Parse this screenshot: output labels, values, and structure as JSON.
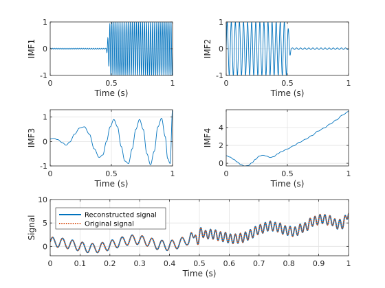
{
  "chart_data": [
    {
      "type": "line",
      "ylabel": "IMF1",
      "xlabel": "Time (s)",
      "xlim": [
        0,
        1
      ],
      "ylim": [
        -1,
        1
      ],
      "xticks": [
        0,
        0.5,
        1
      ],
      "xtick_labels": [
        "0",
        "0.5",
        "1"
      ],
      "yticks": [
        -1,
        0,
        1
      ],
      "ytick_labels": [
        "-1",
        "0",
        "1"
      ],
      "grid": true,
      "series": [
        {
          "color": "#0072BD",
          "description": "near zero until ~0.47 s, then oscillation of amplitude ~1 at ~60 Hz to 1 s",
          "segments": [
            {
              "x0": 0.0,
              "x1": 0.46,
              "amplitude": 0.02,
              "frequency_hz": 60
            },
            {
              "x0": 0.46,
              "x1": 0.49,
              "amplitude_start": 0.05,
              "amplitude_end": 1.0,
              "frequency_hz": 60
            },
            {
              "x0": 0.49,
              "x1": 1.0,
              "amplitude": 1.0,
              "frequency_hz": 60
            }
          ]
        }
      ]
    },
    {
      "type": "line",
      "ylabel": "IMF2",
      "xlabel": "Time (s)",
      "xlim": [
        0,
        1
      ],
      "ylim": [
        -1,
        1
      ],
      "xticks": [
        0,
        0.5,
        1
      ],
      "xtick_labels": [
        "0",
        "0.5",
        "1"
      ],
      "yticks": [
        -1,
        0,
        1
      ],
      "ytick_labels": [
        "-1",
        "0",
        "1"
      ],
      "grid": true,
      "series": [
        {
          "color": "#0072BD",
          "description": "oscillation of amplitude ~1 at ~30 Hz from 0 to ~0.5 s, then near zero",
          "segments": [
            {
              "x0": 0.0,
              "x1": 0.5,
              "amplitude": 1.0,
              "frequency_hz": 30
            },
            {
              "x0": 0.5,
              "x1": 0.53,
              "amplitude_start": 1.0,
              "amplitude_end": 0.03,
              "frequency_hz": 30
            },
            {
              "x0": 0.53,
              "x1": 1.0,
              "amplitude": 0.03,
              "frequency_hz": 30
            }
          ]
        }
      ]
    },
    {
      "type": "line",
      "ylabel": "IMF3",
      "xlabel": "Time (s)",
      "xlim": [
        0,
        1
      ],
      "ylim": [
        -1,
        1.3
      ],
      "xticks": [
        0,
        0.5,
        1
      ],
      "xtick_labels": [
        "0",
        "0.5",
        "1"
      ],
      "yticks": [
        -1,
        0,
        1
      ],
      "ytick_labels": [
        "-1",
        "0",
        "1"
      ],
      "grid": true,
      "series": [
        {
          "color": "#0072BD",
          "description": "chirp-like oscillation with rising frequency and amplitude ~0.9",
          "points": [
            [
              0.0,
              0.1
            ],
            [
              0.03,
              0.12
            ],
            [
              0.06,
              0.08
            ],
            [
              0.1,
              -0.05
            ],
            [
              0.13,
              -0.15
            ],
            [
              0.16,
              -0.02
            ],
            [
              0.2,
              0.3
            ],
            [
              0.24,
              0.55
            ],
            [
              0.28,
              0.6
            ],
            [
              0.32,
              0.3
            ],
            [
              0.36,
              -0.3
            ],
            [
              0.4,
              -0.65
            ],
            [
              0.43,
              -0.55
            ],
            [
              0.46,
              0.0
            ],
            [
              0.49,
              0.6
            ],
            [
              0.52,
              0.9
            ],
            [
              0.55,
              0.6
            ],
            [
              0.58,
              -0.2
            ],
            [
              0.61,
              -0.8
            ],
            [
              0.64,
              -0.9
            ],
            [
              0.67,
              -0.3
            ],
            [
              0.7,
              0.5
            ],
            [
              0.73,
              0.9
            ],
            [
              0.76,
              0.5
            ],
            [
              0.79,
              -0.5
            ],
            [
              0.82,
              -0.95
            ],
            [
              0.85,
              -0.4
            ],
            [
              0.88,
              0.6
            ],
            [
              0.91,
              0.95
            ],
            [
              0.94,
              0.2
            ],
            [
              0.96,
              -0.7
            ],
            [
              0.98,
              -0.9
            ],
            [
              1.0,
              1.3
            ]
          ]
        }
      ]
    },
    {
      "type": "line",
      "ylabel": "IMF4",
      "xlabel": "Time (s)",
      "xlim": [
        0,
        1
      ],
      "ylim": [
        -0.3,
        6
      ],
      "xticks": [
        0,
        0.5,
        1
      ],
      "xtick_labels": [
        "0",
        "0.5",
        "1"
      ],
      "yticks": [
        0,
        2,
        4
      ],
      "ytick_labels": [
        "0",
        "2",
        "4"
      ],
      "grid": true,
      "series": [
        {
          "color": "#0072BD",
          "description": "trend: dips to ~-0.3 near 0.15 s then rises to ~5.8 at 1 s",
          "points": [
            [
              0.0,
              0.85
            ],
            [
              0.03,
              0.7
            ],
            [
              0.06,
              0.45
            ],
            [
              0.09,
              0.15
            ],
            [
              0.12,
              -0.15
            ],
            [
              0.15,
              -0.3
            ],
            [
              0.18,
              -0.25
            ],
            [
              0.21,
              0.05
            ],
            [
              0.24,
              0.45
            ],
            [
              0.27,
              0.8
            ],
            [
              0.3,
              0.9
            ],
            [
              0.33,
              0.8
            ],
            [
              0.36,
              0.65
            ],
            [
              0.39,
              0.75
            ],
            [
              0.42,
              1.05
            ],
            [
              0.45,
              1.3
            ],
            [
              0.5,
              1.6
            ],
            [
              0.55,
              1.95
            ],
            [
              0.6,
              2.35
            ],
            [
              0.65,
              2.7
            ],
            [
              0.7,
              3.1
            ],
            [
              0.75,
              3.6
            ],
            [
              0.8,
              3.95
            ],
            [
              0.85,
              4.4
            ],
            [
              0.9,
              4.85
            ],
            [
              0.95,
              5.4
            ],
            [
              1.0,
              5.8
            ]
          ]
        }
      ]
    },
    {
      "type": "line",
      "ylabel": "Signal",
      "xlabel": "Time (s)",
      "xlim": [
        0,
        1
      ],
      "ylim": [
        -2,
        10
      ],
      "xticks": [
        0,
        0.1,
        0.2,
        0.3,
        0.4,
        0.5,
        0.6,
        0.7,
        0.8,
        0.9,
        1
      ],
      "xtick_labels": [
        "0",
        "0.1",
        "0.2",
        "0.3",
        "0.4",
        "0.5",
        "0.6",
        "0.7",
        "0.8",
        "0.9",
        "1"
      ],
      "yticks": [
        0,
        5,
        10
      ],
      "ytick_labels": [
        "0",
        "5",
        "10"
      ],
      "grid": true,
      "legend": "top-left",
      "series": [
        {
          "name": "Reconstructed signal",
          "color": "#0072BD",
          "style": "solid",
          "description": "sum of IMF1-IMF4: oscillations ~±2 riding on rising trend, ~0 at start to ~7.5 at 1 s"
        },
        {
          "name": "Original signal",
          "color": "#D95319",
          "style": "dotted",
          "description": "overlaps reconstructed signal"
        }
      ]
    }
  ]
}
